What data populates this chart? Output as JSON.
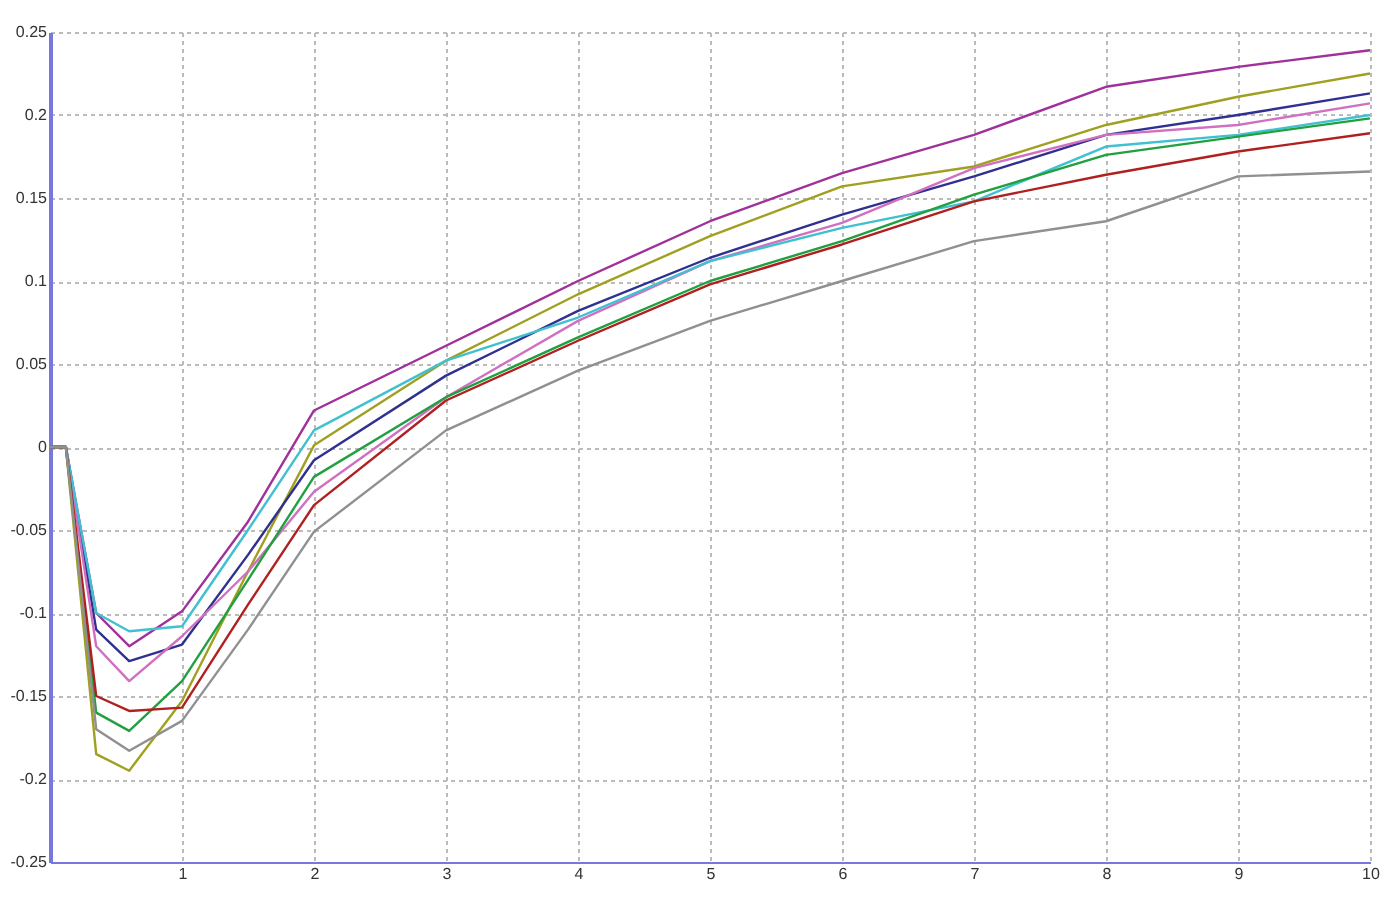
{
  "chart_data": {
    "type": "line",
    "x": [
      0,
      0.12,
      0.35,
      0.6,
      1,
      1.5,
      2,
      3,
      4,
      5,
      6,
      7,
      8,
      9,
      10
    ],
    "xlim": [
      0,
      10
    ],
    "xticks": [
      1,
      2,
      3,
      4,
      5,
      6,
      7,
      8,
      9,
      10
    ],
    "ylim": [
      -0.25,
      0.25
    ],
    "yticks": [
      -0.25,
      -0.2,
      -0.15,
      -0.1,
      -0.05,
      0,
      0.05,
      0.1,
      0.15,
      0.2,
      0.25
    ],
    "grid": true,
    "legend": false,
    "marker": "none",
    "line_style": "solid",
    "series": [
      {
        "color": "#a0309a",
        "values": [
          0,
          0,
          -0.1,
          -0.12,
          -0.099,
          -0.045,
          0.022,
          0.061,
          0.1,
          0.136,
          0.165,
          0.188,
          0.217,
          0.229,
          0.239
        ]
      },
      {
        "color": "#a0a020",
        "values": [
          0,
          0,
          -0.185,
          -0.195,
          -0.153,
          -0.075,
          0.001,
          0.052,
          0.092,
          0.127,
          0.157,
          0.169,
          0.194,
          0.211,
          0.225
        ]
      },
      {
        "color": "#303090",
        "values": [
          0,
          0,
          -0.11,
          -0.129,
          -0.119,
          -0.065,
          -0.008,
          0.043,
          0.082,
          0.114,
          0.14,
          0.163,
          0.188,
          0.2,
          0.213
        ]
      },
      {
        "color": "#d070c0",
        "values": [
          0,
          0,
          -0.12,
          -0.141,
          -0.114,
          -0.075,
          -0.027,
          0.03,
          0.076,
          0.112,
          0.135,
          0.168,
          0.188,
          0.194,
          0.207
        ]
      },
      {
        "color": "#40c0d0",
        "values": [
          0,
          0,
          -0.1,
          -0.111,
          -0.108,
          -0.05,
          0.01,
          0.052,
          0.078,
          0.112,
          0.132,
          0.148,
          0.181,
          0.188,
          0.2
        ]
      },
      {
        "color": "#20a040",
        "values": [
          0,
          0,
          -0.16,
          -0.171,
          -0.141,
          -0.08,
          -0.018,
          0.03,
          0.066,
          0.1,
          0.124,
          0.152,
          0.176,
          0.187,
          0.198
        ]
      },
      {
        "color": "#b02020",
        "values": [
          0,
          0,
          -0.15,
          -0.159,
          -0.157,
          -0.095,
          -0.035,
          0.028,
          0.064,
          0.098,
          0.122,
          0.148,
          0.164,
          0.178,
          0.189
        ]
      },
      {
        "color": "#909090",
        "values": [
          0,
          0,
          -0.17,
          -0.183,
          -0.165,
          -0.11,
          -0.051,
          0.01,
          0.046,
          0.076,
          0.1,
          0.124,
          0.136,
          0.163,
          0.166
        ]
      }
    ]
  }
}
